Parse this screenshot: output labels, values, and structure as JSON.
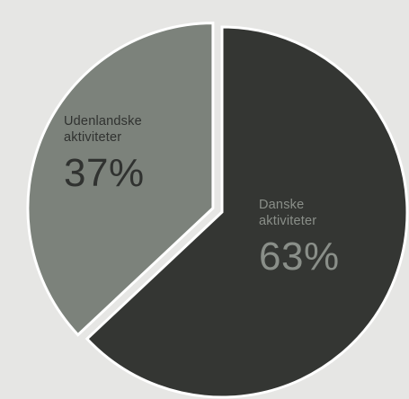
{
  "colors": {
    "background": "#e6e6e4",
    "separator": "#ffffff"
  },
  "chart_data": {
    "type": "pie",
    "title": "",
    "legend": "none",
    "slices": [
      {
        "label": "Danske\naktiviteter",
        "value": 63,
        "value_label": "63%",
        "color": "#343633",
        "text_color": "#8a8f89",
        "exploded": false
      },
      {
        "label": "Udenlandske\naktiviteter",
        "value": 37,
        "value_label": "37%",
        "color": "#7c827b",
        "text_color": "#303230",
        "exploded": true
      }
    ]
  }
}
